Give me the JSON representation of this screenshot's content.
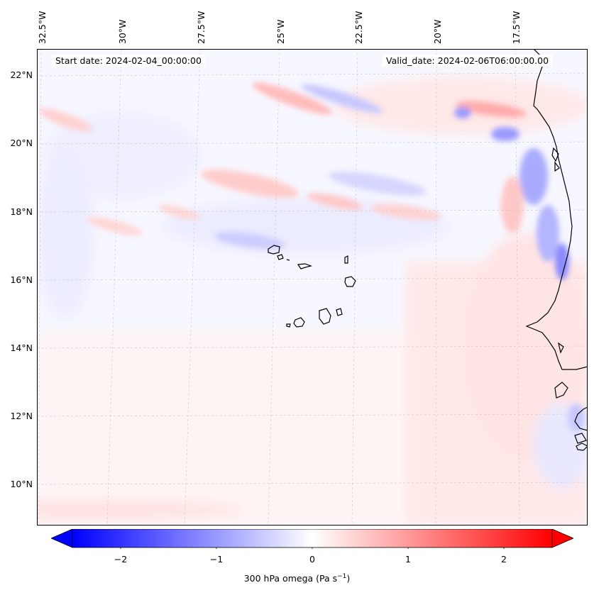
{
  "map": {
    "start_date": "Start date: 2024-02-04_00:00:00",
    "valid_date": "Valid_date: 2024-02-06T06:00:00.00",
    "lon_labels": [
      "32.5°W",
      "30°W",
      "27.5°W",
      "25°W",
      "22.5°W",
      "20°W",
      "17.5°W"
    ],
    "lat_labels": [
      "22°N",
      "20°N",
      "18°N",
      "16°N",
      "14°N",
      "12°N",
      "10°N"
    ],
    "lon_range": [
      -32.6,
      -15.8
    ],
    "lat_range": [
      8.9,
      22.8
    ],
    "field": "300 hPa omega",
    "gridlines": true
  },
  "colorbar": {
    "ticks": [
      "−2",
      "−1",
      "0",
      "1",
      "2"
    ],
    "range": [
      -2.5,
      2.5
    ],
    "extend": "both",
    "colormap": "bwr",
    "label_main": "300 hPa omega (Pa s",
    "label_sup": "−1",
    "label_end": ")"
  },
  "colors": {
    "negative": "#0000ff",
    "positive": "#ff0000",
    "zero": "#ffffff",
    "coastline": "#000000"
  }
}
